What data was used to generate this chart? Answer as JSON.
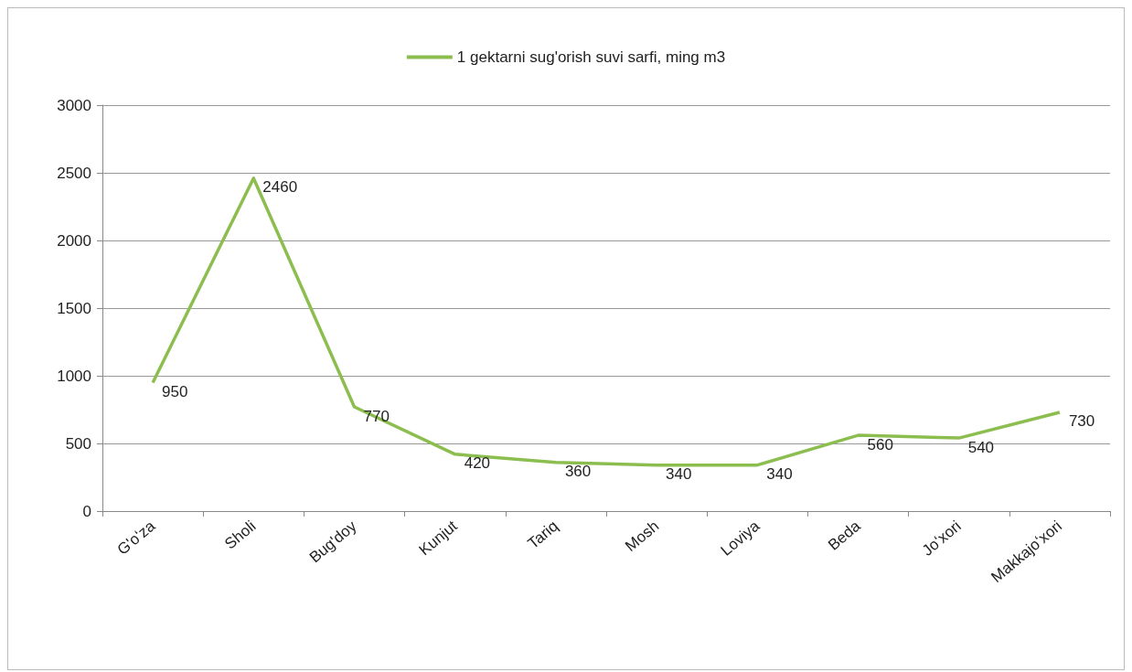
{
  "chart_data": {
    "type": "line",
    "categories": [
      "G'oʻza",
      "Sholi",
      "Bug'doy",
      "Kunjut",
      "Tariq",
      "Mosh",
      "Loviya",
      "Beda",
      "Joʻxori",
      "Makkajoʻxori"
    ],
    "series": [
      {
        "name": "1 gektarni sug'orish suvi sarfi, ming m3",
        "color": "#8cbd4f",
        "values": [
          950,
          2460,
          770,
          420,
          360,
          340,
          340,
          560,
          540,
          730
        ]
      }
    ],
    "ylim": [
      0,
      3000
    ],
    "yticks": [
      0,
      500,
      1000,
      1500,
      2000,
      2500,
      3000
    ],
    "grid": "y",
    "legend": "top",
    "marker": "none",
    "line_style": "solid",
    "data_labels": true
  }
}
